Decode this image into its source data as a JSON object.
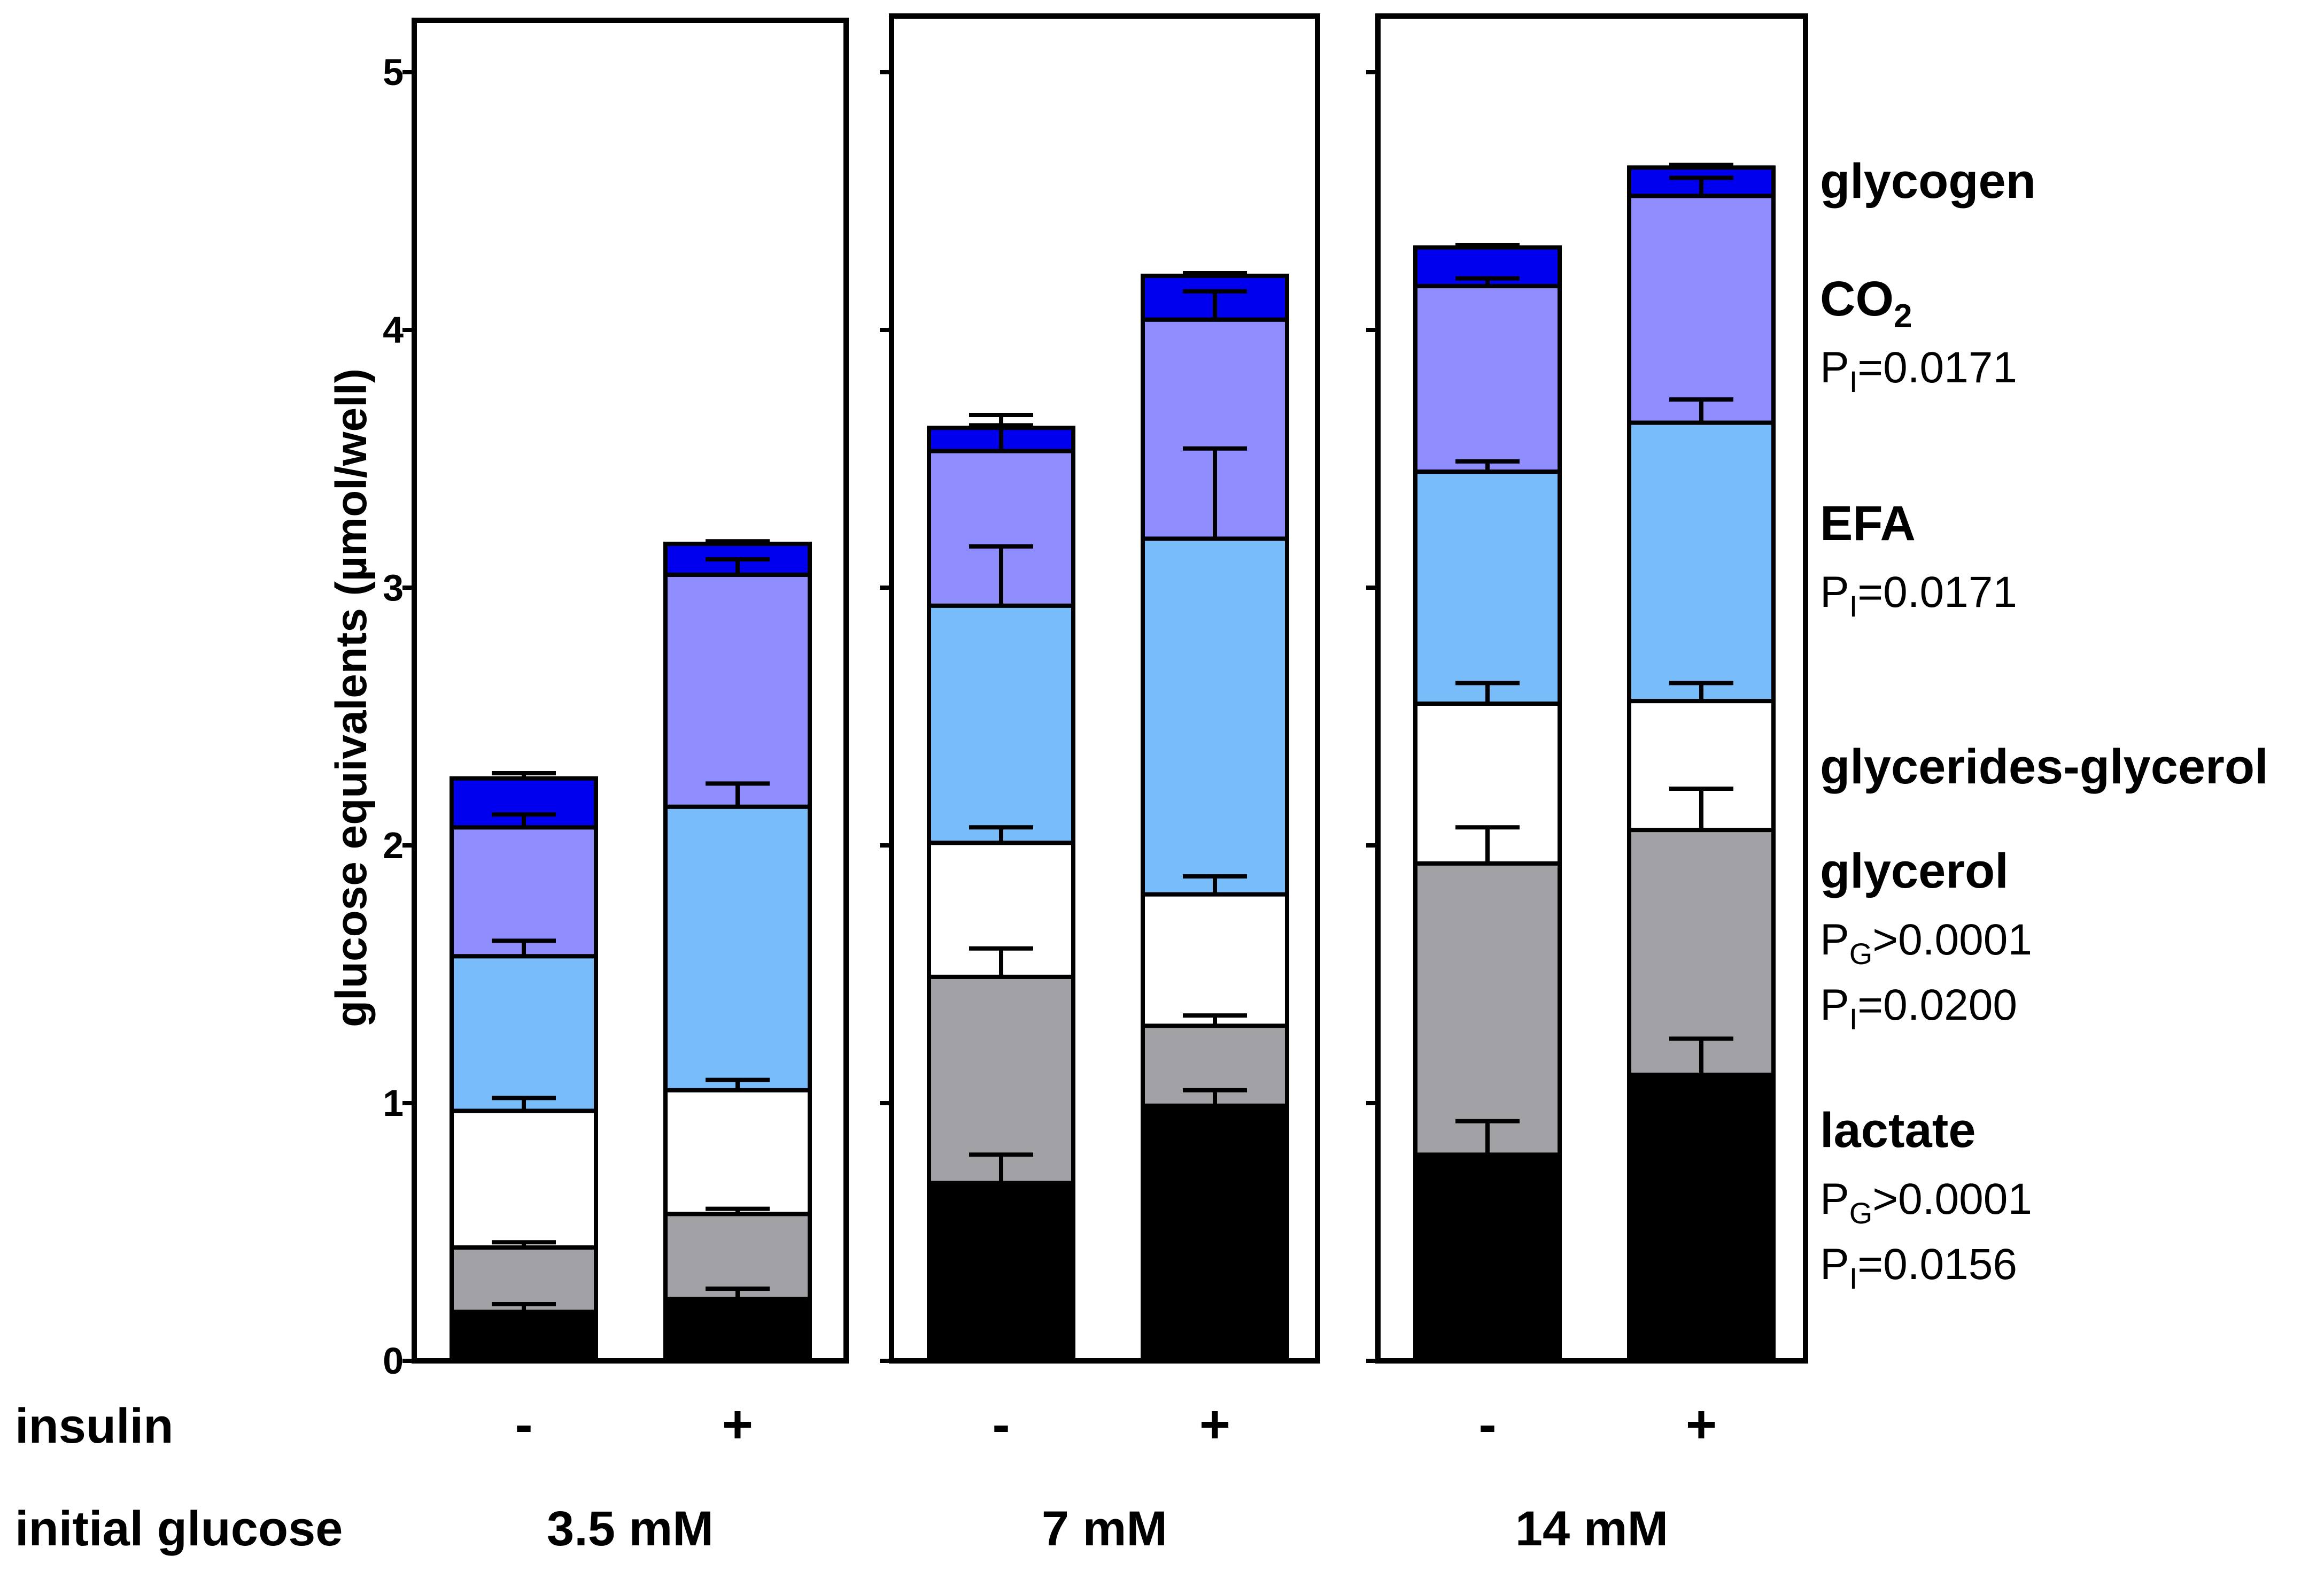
{
  "chart_data": {
    "type": "bar",
    "stacked": true,
    "ylabel": "glucose equivalents (µmol/well)",
    "ylim": [
      0,
      5.2
    ],
    "yticks": [
      0,
      1,
      2,
      3,
      4,
      5
    ],
    "row_labels": {
      "insulin": "insulin",
      "glucose": "initial glucose"
    },
    "insulin_labels": [
      "-",
      "+"
    ],
    "segments": [
      "lactate",
      "glycerol",
      "glycerides-glycerol",
      "EFA",
      "CO2",
      "glycogen"
    ],
    "colors": {
      "lactate": "#000000",
      "glycerol": "#a2a2a6",
      "glycerides-glycerol": "#ffffff",
      "EFA": "#78bdfa",
      "CO2": "#908eff",
      "glycogen": "#0000ee"
    },
    "groups": [
      {
        "label": "3.5 mM",
        "bars": [
          {
            "insulin": "-",
            "values": [
              0.19,
              0.25,
              0.53,
              0.6,
              0.5,
              0.19
            ],
            "errors": [
              0.03,
              0.02,
              0.05,
              0.06,
              0.05,
              0.02
            ]
          },
          {
            "insulin": "+",
            "values": [
              0.24,
              0.33,
              0.48,
              1.1,
              0.9,
              0.12
            ],
            "errors": [
              0.04,
              0.02,
              0.04,
              0.09,
              0.06,
              0.01
            ]
          }
        ]
      },
      {
        "label": "7 mM",
        "bars": [
          {
            "insulin": "-",
            "values": [
              0.69,
              0.8,
              0.52,
              0.92,
              0.6,
              0.09
            ],
            "errors": [
              0.11,
              0.11,
              0.06,
              0.23,
              0.14,
              0.01
            ]
          },
          {
            "insulin": "+",
            "values": [
              0.99,
              0.31,
              0.51,
              1.38,
              0.85,
              0.17
            ],
            "errors": [
              0.06,
              0.04,
              0.07,
              0.35,
              0.11,
              0.01
            ]
          }
        ]
      },
      {
        "label": "14 mM",
        "bars": [
          {
            "insulin": "-",
            "values": [
              0.8,
              1.13,
              0.62,
              0.9,
              0.72,
              0.15
            ],
            "errors": [
              0.13,
              0.14,
              0.08,
              0.04,
              0.03,
              0.01
            ]
          },
          {
            "insulin": "+",
            "values": [
              1.11,
              0.95,
              0.5,
              1.08,
              0.88,
              0.11
            ],
            "errors": [
              0.14,
              0.16,
              0.07,
              0.09,
              0.07,
              0.01
            ]
          }
        ]
      }
    ],
    "legend": [
      {
        "name": "glycogen",
        "lines": []
      },
      {
        "name": "CO",
        "sub": "2",
        "lines": [
          {
            "p": "P",
            "sub": "I",
            "rest": "=0.0171"
          }
        ]
      },
      {
        "name": "EFA",
        "lines": [
          {
            "p": "P",
            "sub": "I",
            "rest": "=0.0171"
          }
        ]
      },
      {
        "name": "glycerides-glycerol",
        "lines": []
      },
      {
        "name": "glycerol",
        "lines": [
          {
            "p": "P",
            "sub": "G",
            "rest": ">0.0001"
          },
          {
            "p": "P",
            "sub": "I",
            "rest": "=0.0200"
          }
        ]
      },
      {
        "name": "lactate",
        "lines": [
          {
            "p": "P",
            "sub": "G",
            "rest": ">0.0001"
          },
          {
            "p": "P",
            "sub": "I",
            "rest": "=0.0156"
          }
        ]
      }
    ]
  }
}
